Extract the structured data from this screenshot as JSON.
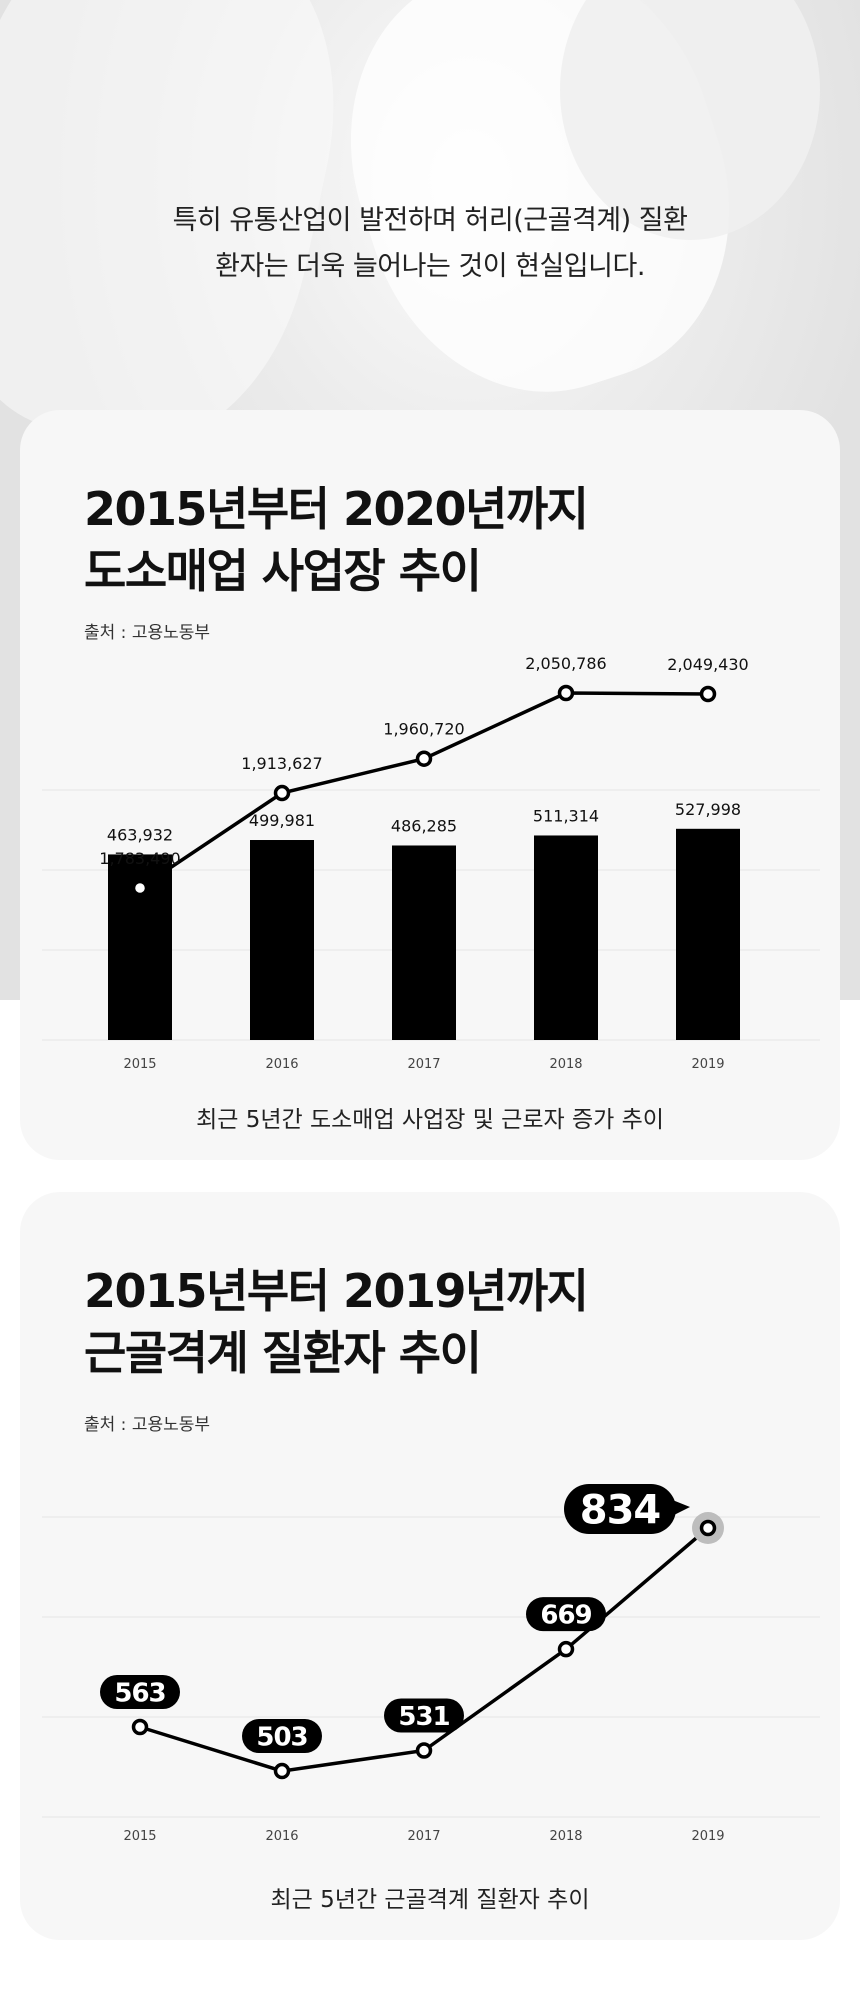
{
  "hero": {
    "line1": "특히 유통산업이 발전하며 허리(근골격계) 질환",
    "line2": "환자는 더욱 늘어나는 것이 현실입니다."
  },
  "card1": {
    "title_line1": "2015년부터 2020년까지",
    "title_line2": "도소매업 사업장 추이",
    "source": "출처 : 고용노동부",
    "caption": "최근 5년간 도소매업 사업장 및 근로자 증가 추이"
  },
  "card2": {
    "title_line1": "2015년부터 2019년까지",
    "title_line2": "근골격계 질환자 추이",
    "source": "출처 : 고용노동부",
    "caption": "최근 5년간 근골격계 질환자 추이"
  },
  "chart_data": [
    {
      "type": "bar",
      "categories": [
        "2015",
        "2016",
        "2017",
        "2018",
        "2019"
      ],
      "series": [
        {
          "type": "line",
          "values": [
            1783490,
            1913627,
            1960720,
            2050786,
            2049430
          ],
          "labels": [
            "1,783,490",
            "1,913,627",
            "1,960,720",
            "2,050,786",
            "2,049,430"
          ],
          "color": "#000000"
        },
        {
          "type": "bar",
          "values": [
            463932,
            499981,
            486285,
            511314,
            527998
          ],
          "labels": [
            "463,932",
            "499,981",
            "486,285",
            "511,314",
            "527,998"
          ],
          "color": "#000000"
        }
      ],
      "grid": true,
      "legend": "none"
    },
    {
      "type": "line",
      "categories": [
        "2015",
        "2016",
        "2017",
        "2018",
        "2019"
      ],
      "series": [
        {
          "values": [
            563,
            503,
            531,
            669,
            834
          ],
          "labels": [
            "563",
            "503",
            "531",
            "669",
            "834"
          ],
          "color": "#000000",
          "highlight_color": "#bdbdbd"
        }
      ],
      "grid": true,
      "legend": "none"
    }
  ]
}
